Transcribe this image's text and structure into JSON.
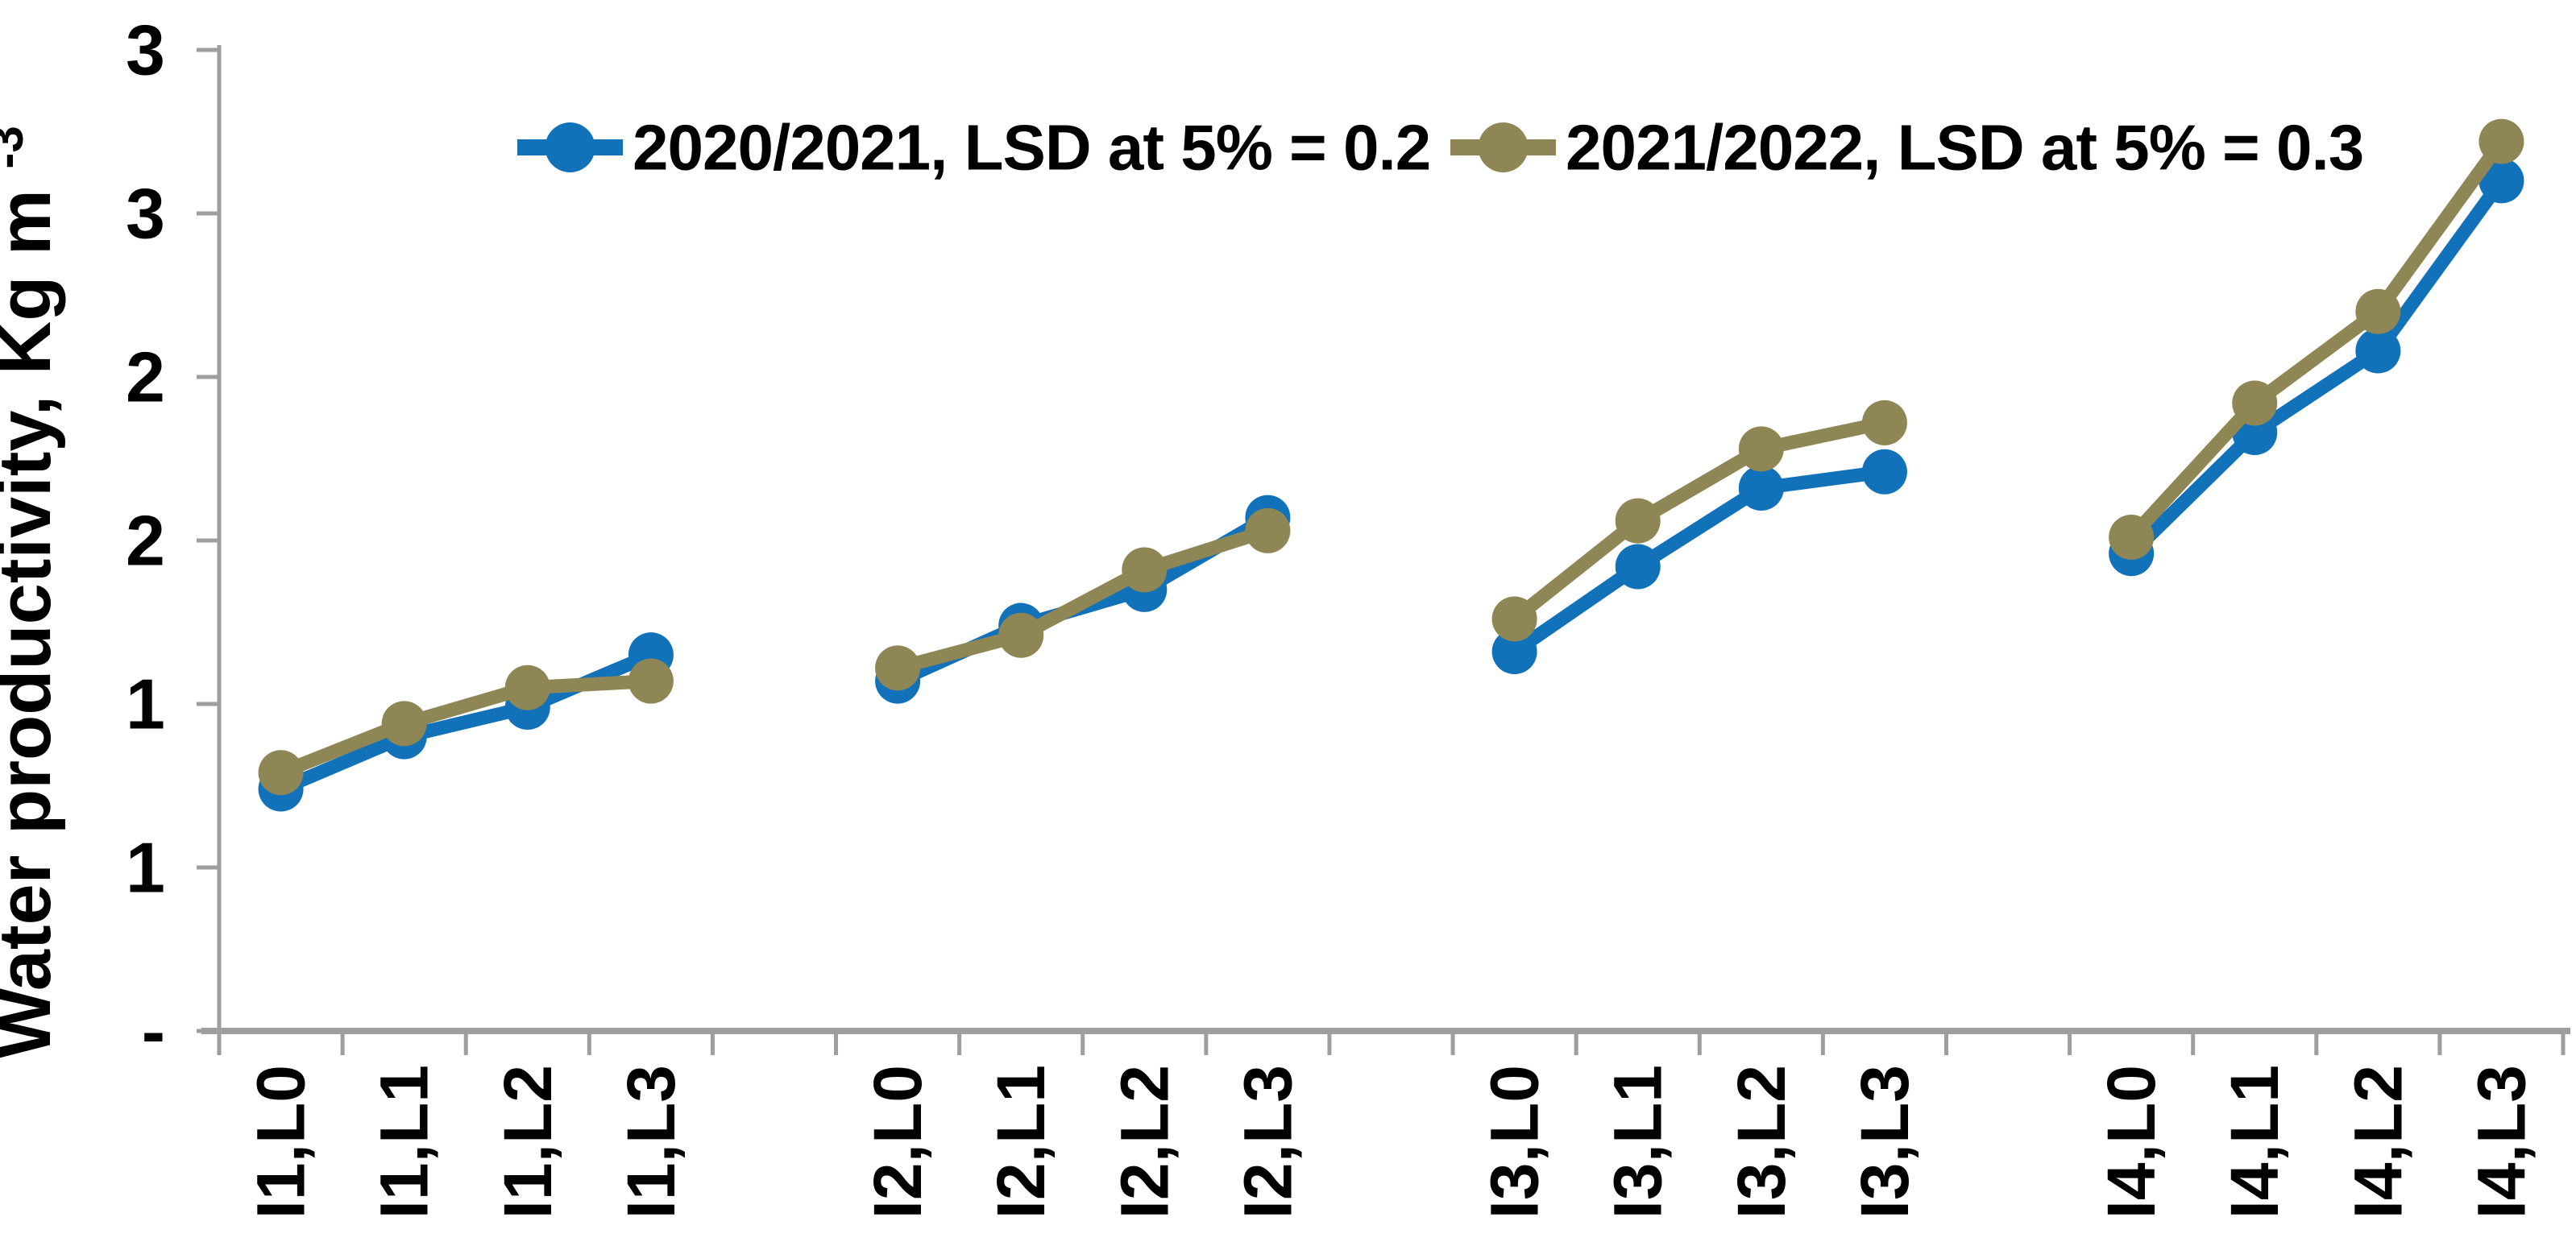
{
  "chart_data": {
    "type": "line",
    "title": "",
    "xlabel": "",
    "ylabel_base": "Water productivity, Kg m",
    "ylabel_superscript": "-3",
    "categories": [
      "I1,L0",
      "I1,L1",
      "I1,L2",
      "I1,L3",
      "I2,L0",
      "I2,L1",
      "I2,L2",
      "I2,L3",
      "I3,L0",
      "I3,L1",
      "I3,L2",
      "I3,L3",
      "I4,L0",
      "I4,L1",
      "I4,L2",
      "I4,L3"
    ],
    "category_groups": [
      "I1",
      "I2",
      "I3",
      "I4"
    ],
    "group_size": 4,
    "y_axis": {
      "min": 0,
      "max": 3,
      "step": 0.5,
      "tick_labels_bottom_to_top": [
        "-",
        "1",
        "1",
        "2",
        "2",
        "3",
        "3"
      ]
    },
    "grid": "off",
    "legend_position": "top",
    "series": [
      {
        "name": "2020/2021, LSD at 5% = 0.2",
        "color": "#1172B9",
        "values": [
          0.74,
          0.9,
          0.99,
          1.15,
          1.07,
          1.24,
          1.35,
          1.57,
          1.16,
          1.42,
          1.66,
          1.71,
          1.46,
          1.83,
          2.08,
          2.6
        ]
      },
      {
        "name": "2021/2022, LSD at 5% = 0.3",
        "color": "#8E8654",
        "values": [
          0.79,
          0.94,
          1.05,
          1.07,
          1.11,
          1.21,
          1.41,
          1.53,
          1.26,
          1.56,
          1.78,
          1.86,
          1.51,
          1.92,
          2.2,
          2.72
        ]
      }
    ],
    "axis_color": "#9E9E9E",
    "text_color": "#000000"
  }
}
